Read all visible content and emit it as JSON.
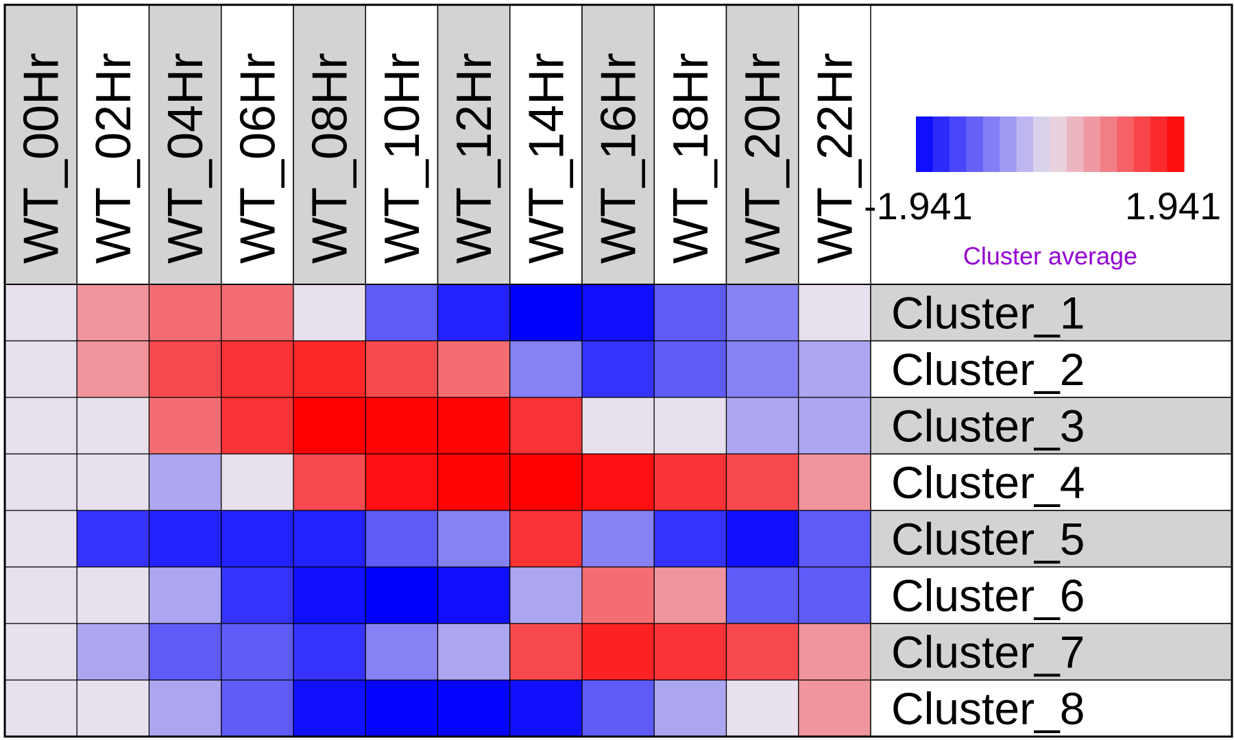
{
  "chart_data": {
    "type": "heatmap",
    "columns": [
      "WT_00Hr",
      "WT_02Hr",
      "WT_04Hr",
      "WT_06Hr",
      "WT_08Hr",
      "WT_10Hr",
      "WT_12Hr",
      "WT_14Hr",
      "WT_16Hr",
      "WT_18Hr",
      "WT_20Hr",
      "WT_22Hr"
    ],
    "rows": [
      "Cluster_1",
      "Cluster_2",
      "Cluster_3",
      "Cluster_4",
      "Cluster_5",
      "Cluster_6",
      "Cluster_7",
      "Cluster_8"
    ],
    "values": [
      [
        0.0,
        0.65,
        1.0,
        1.0,
        0.0,
        -1.15,
        -1.65,
        -1.94,
        -1.8,
        -1.15,
        -0.82,
        0.0
      ],
      [
        0.0,
        0.65,
        1.3,
        1.5,
        1.6,
        1.3,
        1.0,
        -0.82,
        -1.5,
        -1.15,
        -0.82,
        -0.5
      ],
      [
        0.0,
        0.0,
        1.0,
        1.5,
        1.94,
        1.9,
        1.9,
        1.5,
        0.0,
        0.0,
        -0.5,
        -0.5
      ],
      [
        0.0,
        0.0,
        -0.5,
        0.0,
        1.3,
        1.8,
        1.9,
        1.94,
        1.8,
        1.5,
        1.3,
        0.65
      ],
      [
        0.0,
        -1.5,
        -1.65,
        -1.65,
        -1.65,
        -1.15,
        -0.82,
        1.5,
        -0.82,
        -1.5,
        -1.8,
        -1.15
      ],
      [
        0.0,
        0.0,
        -0.5,
        -1.5,
        -1.8,
        -1.94,
        -1.8,
        -0.5,
        1.0,
        0.65,
        -1.15,
        -1.15
      ],
      [
        0.0,
        -0.5,
        -1.15,
        -1.15,
        -1.5,
        -0.82,
        -0.5,
        1.3,
        1.65,
        1.5,
        1.3,
        0.65
      ],
      [
        0.0,
        0.0,
        -0.5,
        -1.15,
        -1.8,
        -1.9,
        -1.9,
        -1.8,
        -1.15,
        -0.5,
        0.0,
        0.65
      ]
    ],
    "color_scale": {
      "min": -1.941,
      "max": 1.941,
      "min_label": "-1.941",
      "max_label": "1.941",
      "title": "Cluster average",
      "min_color": "#0000ff",
      "mid_color": "#e8e0ec",
      "max_color": "#ff0000",
      "steps": 16
    }
  },
  "style": {
    "header_alt_color": "#d3d3d3",
    "row_label_alt_color": "#d3d3d3",
    "legend_title_color": "#9400d3",
    "grid_color": "#000000"
  }
}
